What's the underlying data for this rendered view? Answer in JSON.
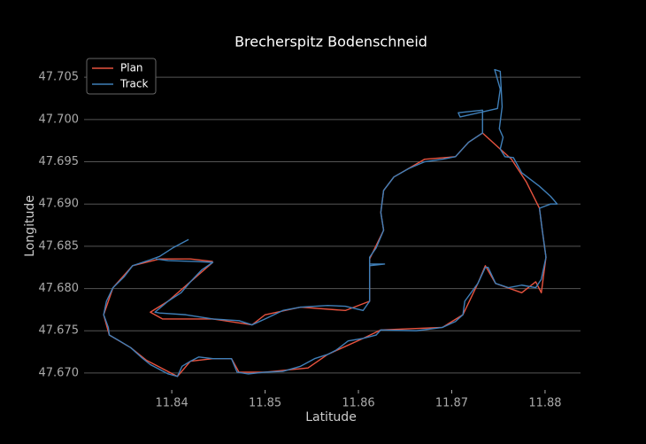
{
  "chart_data": {
    "type": "line",
    "title": "Brecherspitz Bodenschneid",
    "x_label": "Latitude",
    "y_label": "Longitude",
    "xlim": [
      11.8306,
      11.8838
    ],
    "ylim": [
      47.668,
      47.7068
    ],
    "xticks": [
      11.84,
      11.85,
      11.86,
      11.87,
      11.88
    ],
    "yticks": [
      {
        "value": 47.67,
        "label": "47.670"
      },
      {
        "value": 47.675,
        "label": "47.675"
      },
      {
        "value": 47.68,
        "label": "47.680"
      },
      {
        "value": 47.685,
        "label": "47.685"
      },
      {
        "value": 47.69,
        "label": "47.690"
      },
      {
        "value": 47.695,
        "label": "47.695"
      },
      {
        "value": 47.7,
        "label": "47.700"
      },
      {
        "value": 47.705,
        "label": "47.705"
      }
    ],
    "grid": true,
    "legend": "upper left",
    "series": [
      {
        "name": "Plan",
        "color": "#e8533f",
        "x": [
          11.8444,
          11.842,
          11.8387,
          11.8358,
          11.8337,
          11.8327,
          11.8333,
          11.8356,
          11.8373,
          11.8406,
          11.842,
          11.8444,
          11.8464,
          11.8472,
          11.85,
          11.8546,
          11.8567,
          11.8605,
          11.8624,
          11.869,
          11.8712,
          11.8728,
          11.8736,
          11.8747,
          11.8775,
          11.879,
          11.8796,
          11.8801,
          11.8797,
          11.8794,
          11.878,
          11.8764,
          11.8752,
          11.8733,
          11.8718,
          11.8704,
          11.8671,
          11.8638,
          11.8627,
          11.8624,
          11.8627,
          11.8612,
          11.8612,
          11.8586,
          11.8538,
          11.85,
          11.8486,
          11.8444,
          11.8406,
          11.839,
          11.8377,
          11.8396,
          11.842,
          11.8444
        ],
        "values": [
          47.6832,
          47.6835,
          47.6835,
          47.6827,
          47.6801,
          47.6769,
          47.6745,
          47.673,
          47.6715,
          47.6696,
          47.6714,
          47.6717,
          47.6717,
          47.6701,
          47.6701,
          47.6706,
          47.6722,
          47.6741,
          47.6751,
          47.6754,
          47.6769,
          47.6806,
          47.6827,
          47.6806,
          47.6795,
          47.6808,
          47.6795,
          47.6837,
          47.6869,
          47.6895,
          47.6926,
          47.6953,
          47.6965,
          47.6984,
          47.6973,
          47.6956,
          47.6953,
          47.6932,
          47.6916,
          47.689,
          47.6869,
          47.6835,
          47.6785,
          47.6774,
          47.6778,
          47.6769,
          47.6757,
          47.6764,
          47.6764,
          47.6764,
          47.6772,
          47.6785,
          47.6808,
          47.6831
        ]
      },
      {
        "name": "Track",
        "color": "#3f7fb8",
        "x": [
          11.8418,
          11.8401,
          11.8387,
          11.8377,
          11.8358,
          11.8349,
          11.8337,
          11.833,
          11.8327,
          11.8332,
          11.8333,
          11.8344,
          11.8356,
          11.8368,
          11.8377,
          11.8396,
          11.8406,
          11.8411,
          11.842,
          11.8429,
          11.8444,
          11.8464,
          11.847,
          11.8482,
          11.85,
          11.8519,
          11.8538,
          11.8553,
          11.8567,
          11.8576,
          11.8589,
          11.8605,
          11.8619,
          11.8624,
          11.8662,
          11.869,
          11.8704,
          11.8712,
          11.8714,
          11.8728,
          11.8736,
          11.8739,
          11.8747,
          11.8761,
          11.8775,
          11.879,
          11.8796,
          11.8801,
          11.8797,
          11.8794,
          11.8806,
          11.8813,
          11.8806,
          11.8794,
          11.8775,
          11.8766,
          11.8757,
          11.8752,
          11.8755,
          11.8751,
          11.8754,
          11.8752,
          11.8746,
          11.8752,
          11.8749,
          11.8709,
          11.8707,
          11.8733,
          11.8733,
          11.8718,
          11.8704,
          11.869,
          11.8671,
          11.8654,
          11.8638,
          11.8627,
          11.8624,
          11.8627,
          11.8619,
          11.8612,
          11.8612,
          11.8628,
          11.8612,
          11.8612,
          11.8605,
          11.8586,
          11.8567,
          11.8538,
          11.8519,
          11.85,
          11.8486,
          11.8472,
          11.8444,
          11.8415,
          11.8387,
          11.8382,
          11.8396,
          11.841,
          11.842,
          11.8432,
          11.8444,
          11.8425,
          11.8396,
          11.8383
        ],
        "values": [
          47.6858,
          47.6848,
          47.6838,
          47.6834,
          47.6827,
          47.6814,
          47.6801,
          47.6785,
          47.6769,
          47.6754,
          47.6745,
          47.6738,
          47.673,
          47.6718,
          47.671,
          47.6699,
          47.6696,
          47.6708,
          47.6714,
          47.6719,
          47.6717,
          47.6717,
          47.6701,
          47.6699,
          47.6701,
          47.6702,
          47.6708,
          47.6717,
          47.6722,
          47.6727,
          47.6738,
          47.6741,
          47.6745,
          47.6751,
          47.675,
          47.6754,
          47.6761,
          47.6769,
          47.6785,
          47.6806,
          47.6825,
          47.6825,
          47.6806,
          47.6801,
          47.6804,
          47.6801,
          47.6811,
          47.6837,
          47.6869,
          47.6895,
          47.69,
          47.69,
          47.6909,
          47.6921,
          47.6937,
          47.6955,
          47.6956,
          47.6965,
          47.6979,
          47.6989,
          47.7015,
          47.7057,
          47.7059,
          47.7036,
          47.7013,
          47.7003,
          47.7008,
          47.7011,
          47.6984,
          47.6973,
          47.6956,
          47.6953,
          47.695,
          47.6942,
          47.6932,
          47.6916,
          47.689,
          47.6869,
          47.6848,
          47.6837,
          47.6827,
          47.6829,
          47.6829,
          47.6785,
          47.6774,
          47.6779,
          47.678,
          47.6778,
          47.6774,
          47.6764,
          47.6757,
          47.6762,
          47.6764,
          47.6769,
          47.6771,
          47.6772,
          47.6785,
          47.6795,
          47.6808,
          47.6822,
          47.6831,
          47.6832,
          47.6833,
          47.6835
        ]
      }
    ]
  }
}
